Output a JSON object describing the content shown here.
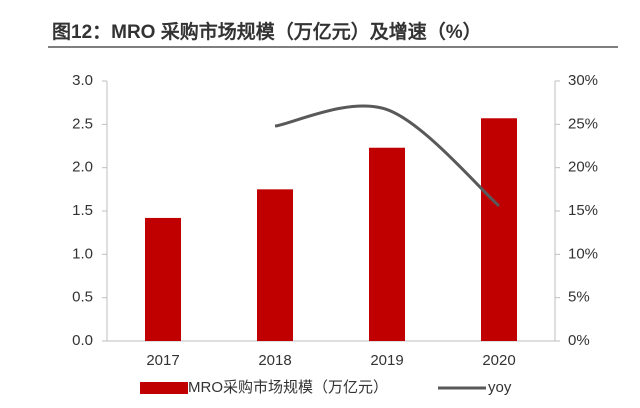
{
  "chart_data": {
    "type": "bar_line",
    "title": "图12：MRO 采购市场规模（万亿元）及增速（%）",
    "categories": [
      "2017",
      "2018",
      "2019",
      "2020"
    ],
    "series": [
      {
        "name": "MRO采购市场规模（万亿元）",
        "type": "bar",
        "color": "#c00000",
        "values": [
          1.42,
          1.75,
          2.23,
          2.57
        ]
      },
      {
        "name": "yoy",
        "type": "line",
        "axis": "y2",
        "color": "#595959",
        "smooth": true,
        "values": [
          null,
          24.8,
          26.7,
          15.6
        ]
      }
    ],
    "ylim": [
      0,
      3
    ],
    "yticks": [
      {
        "value": 0,
        "label": "0.0"
      },
      0.5,
      {
        "value": 1,
        "label": "1.0"
      },
      1.5,
      {
        "value": 2,
        "label": "2.0"
      },
      2.5,
      {
        "value": 3,
        "label": "3.0"
      }
    ],
    "y2lim": [
      0,
      30
    ],
    "y2ticks": [
      {
        "value": 0,
        "label": "0%"
      },
      {
        "value": 5,
        "label": "5%"
      },
      {
        "value": 10,
        "label": "10%"
      },
      {
        "value": 15,
        "label": "15%"
      },
      {
        "value": 20,
        "label": "20%"
      },
      {
        "value": 25,
        "label": "25%"
      },
      {
        "value": 30,
        "label": "30%"
      }
    ],
    "grid": false,
    "legend": "bottom"
  }
}
